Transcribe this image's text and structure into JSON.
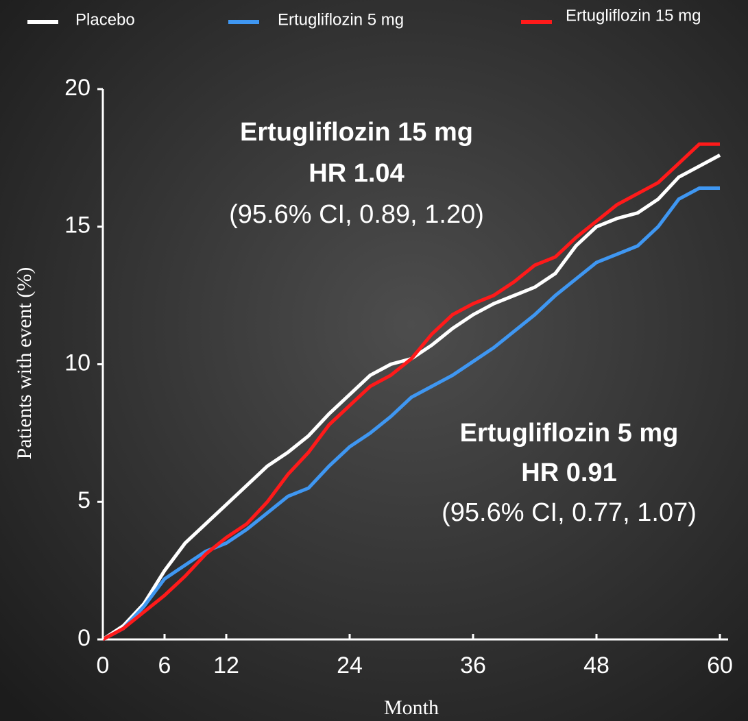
{
  "chart_data": {
    "type": "line",
    "xlabel": "Month",
    "ylabel": "Patients with event (%)",
    "x": [
      0,
      2,
      4,
      6,
      8,
      10,
      12,
      14,
      16,
      18,
      20,
      22,
      24,
      26,
      28,
      30,
      32,
      34,
      36,
      38,
      40,
      42,
      44,
      46,
      48,
      50,
      52,
      54,
      56,
      58,
      60
    ],
    "series": [
      {
        "name": "Placebo",
        "color": "#ffffff",
        "values": [
          0,
          0.5,
          1.3,
          2.5,
          3.5,
          4.2,
          4.9,
          5.6,
          6.3,
          6.8,
          7.4,
          8.2,
          8.9,
          9.6,
          10.0,
          10.2,
          10.7,
          11.3,
          11.8,
          12.2,
          12.5,
          12.8,
          13.3,
          14.3,
          15.0,
          15.3,
          15.5,
          16.0,
          16.8,
          17.2,
          17.6
        ]
      },
      {
        "name": "Ertugliflozin 5 mg",
        "color": "#3f97f2",
        "values": [
          0,
          0.4,
          1.2,
          2.2,
          2.7,
          3.2,
          3.5,
          4.0,
          4.6,
          5.2,
          5.5,
          6.3,
          7.0,
          7.5,
          8.1,
          8.8,
          9.2,
          9.6,
          10.1,
          10.6,
          11.2,
          11.8,
          12.5,
          13.1,
          13.7,
          14.0,
          14.3,
          15.0,
          16.0,
          16.4,
          16.4
        ]
      },
      {
        "name": "Ertugliflozin 15 mg",
        "color": "#ff1a1a",
        "values": [
          0,
          0.4,
          1.0,
          1.6,
          2.3,
          3.1,
          3.7,
          4.2,
          5.0,
          6.0,
          6.8,
          7.8,
          8.5,
          9.2,
          9.6,
          10.2,
          11.1,
          11.8,
          12.2,
          12.5,
          13.0,
          13.6,
          13.9,
          14.6,
          15.2,
          15.8,
          16.2,
          16.6,
          17.3,
          18.0,
          18.0
        ]
      }
    ],
    "xlim": [
      0,
      60
    ],
    "xticks": [
      0,
      6,
      12,
      24,
      36,
      48,
      60
    ],
    "ylim": [
      0,
      20
    ],
    "yticks": [
      0,
      5,
      10,
      15,
      20
    ],
    "annotations": [
      {
        "color": "#ff1a1a",
        "lines": [
          "Ertugliflozin 15 mg",
          "HR 1.04",
          "(95.6% CI, 0.89, 1.20)"
        ]
      },
      {
        "color": "#1eaaf1",
        "lines": [
          "Ertugliflozin 5 mg",
          "HR 0.91",
          "(95.6% CI, 0.77, 1.07)"
        ]
      }
    ]
  }
}
